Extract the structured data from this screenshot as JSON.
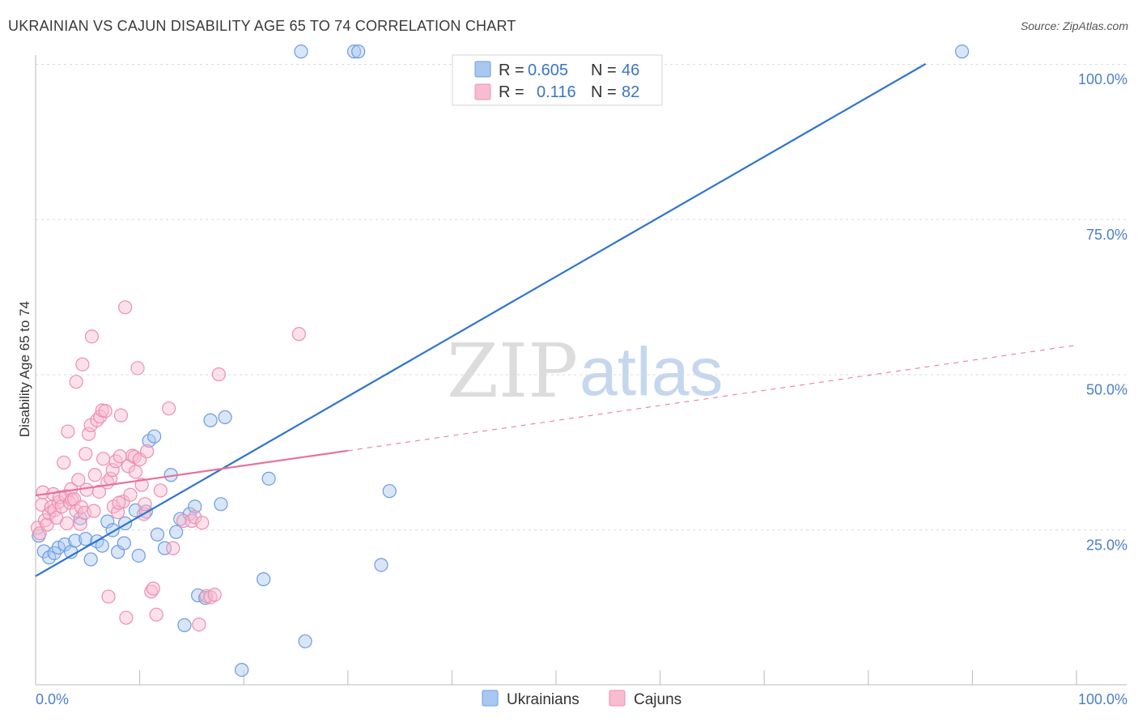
{
  "header": {
    "title": "UKRAINIAN VS CAJUN DISABILITY AGE 65 TO 74 CORRELATION CHART",
    "source": "Source: ZipAtlas.com"
  },
  "watermark": {
    "zip": "ZIP",
    "atlas": "atlas"
  },
  "colors": {
    "blue_fill": "#a9c8f0",
    "blue_stroke": "#6c9be0",
    "blue_line": "#2f74d0",
    "pink_fill": "#f8bcd0",
    "pink_stroke": "#ec8fb0",
    "pink_line": "#e8709a",
    "tick_text": "#4a7fc8",
    "grid": "#d9d9d9"
  },
  "chart_data": {
    "type": "scatter",
    "xlabel": "",
    "ylabel": "Disability Age 65 to 74",
    "xlim": [
      0,
      100
    ],
    "ylim": [
      0,
      100
    ],
    "x_tick_labels": {
      "left": "0.0%",
      "right": "100.0%"
    },
    "y_ticks": [
      {
        "value": 25,
        "label": "25.0%"
      },
      {
        "value": 50,
        "label": "50.0%"
      },
      {
        "value": 75,
        "label": "75.0%"
      },
      {
        "value": 100,
        "label": "100.0%"
      }
    ],
    "legend": {
      "placement": "top-center",
      "entries": [
        {
          "series": "Ukrainians",
          "r_label": "R =",
          "r_value": "0.605",
          "n_label": "N =",
          "n_value": "46"
        },
        {
          "series": "Cajuns",
          "r_label": "R =",
          "r_value": "0.116",
          "n_label": "N =",
          "n_value": "82"
        }
      ]
    },
    "series": [
      {
        "name": "Ukrainians",
        "color": "#6c9be0",
        "trend": {
          "x": [
            0,
            85.5
          ],
          "y": [
            17.5,
            100
          ],
          "style": "solid"
        },
        "points": [
          {
            "x": 0.3,
            "y": 24.0
          },
          {
            "x": 0.8,
            "y": 21.5
          },
          {
            "x": 1.3,
            "y": 20.5
          },
          {
            "x": 1.8,
            "y": 21.2
          },
          {
            "x": 2.2,
            "y": 22.1
          },
          {
            "x": 2.8,
            "y": 22.6
          },
          {
            "x": 3.4,
            "y": 21.4
          },
          {
            "x": 3.8,
            "y": 23.2
          },
          {
            "x": 4.3,
            "y": 26.8
          },
          {
            "x": 4.8,
            "y": 23.5
          },
          {
            "x": 5.3,
            "y": 20.2
          },
          {
            "x": 5.9,
            "y": 23.1
          },
          {
            "x": 6.4,
            "y": 22.4
          },
          {
            "x": 6.9,
            "y": 26.3
          },
          {
            "x": 7.4,
            "y": 24.9
          },
          {
            "x": 7.9,
            "y": 21.4
          },
          {
            "x": 8.5,
            "y": 22.8
          },
          {
            "x": 8.6,
            "y": 26.0
          },
          {
            "x": 9.6,
            "y": 28.1
          },
          {
            "x": 9.9,
            "y": 20.8
          },
          {
            "x": 10.6,
            "y": 27.9
          },
          {
            "x": 10.9,
            "y": 39.3
          },
          {
            "x": 11.4,
            "y": 40.0
          },
          {
            "x": 11.7,
            "y": 24.2
          },
          {
            "x": 12.4,
            "y": 22.0
          },
          {
            "x": 13.0,
            "y": 33.8
          },
          {
            "x": 13.5,
            "y": 24.6
          },
          {
            "x": 13.9,
            "y": 26.7
          },
          {
            "x": 14.3,
            "y": 9.6
          },
          {
            "x": 14.8,
            "y": 27.5
          },
          {
            "x": 15.3,
            "y": 28.7
          },
          {
            "x": 15.6,
            "y": 14.4
          },
          {
            "x": 16.3,
            "y": 14.0
          },
          {
            "x": 16.8,
            "y": 42.6
          },
          {
            "x": 17.8,
            "y": 29.1
          },
          {
            "x": 18.2,
            "y": 43.1
          },
          {
            "x": 19.8,
            "y": 2.4
          },
          {
            "x": 21.9,
            "y": 17.0
          },
          {
            "x": 22.4,
            "y": 33.2
          },
          {
            "x": 25.5,
            "y": 102.0
          },
          {
            "x": 25.9,
            "y": 7.0
          },
          {
            "x": 30.6,
            "y": 102.0
          },
          {
            "x": 31.0,
            "y": 102.0
          },
          {
            "x": 33.2,
            "y": 19.3
          },
          {
            "x": 34.0,
            "y": 31.2
          },
          {
            "x": 89.0,
            "y": 102.0
          }
        ]
      },
      {
        "name": "Cajuns",
        "color": "#ec8fb0",
        "trend": {
          "x": [
            0,
            30
          ],
          "y": [
            30.5,
            37.7
          ],
          "style": "solid",
          "extension": {
            "x": [
              30,
              100
            ],
            "y": [
              37.7,
              54.7
            ],
            "style": "dashed"
          }
        },
        "points": [
          {
            "x": 0.2,
            "y": 25.3
          },
          {
            "x": 0.4,
            "y": 24.4
          },
          {
            "x": 0.6,
            "y": 29.0
          },
          {
            "x": 0.7,
            "y": 31.0
          },
          {
            "x": 0.9,
            "y": 26.5
          },
          {
            "x": 1.1,
            "y": 25.8
          },
          {
            "x": 1.3,
            "y": 27.6
          },
          {
            "x": 1.5,
            "y": 28.6
          },
          {
            "x": 1.7,
            "y": 30.7
          },
          {
            "x": 1.8,
            "y": 28.1
          },
          {
            "x": 2.0,
            "y": 26.9
          },
          {
            "x": 2.2,
            "y": 29.4
          },
          {
            "x": 2.3,
            "y": 30.2
          },
          {
            "x": 2.5,
            "y": 28.7
          },
          {
            "x": 2.7,
            "y": 35.8
          },
          {
            "x": 2.9,
            "y": 30.4
          },
          {
            "x": 3.0,
            "y": 26.0
          },
          {
            "x": 3.1,
            "y": 40.8
          },
          {
            "x": 3.3,
            "y": 29.3
          },
          {
            "x": 3.4,
            "y": 31.5
          },
          {
            "x": 3.5,
            "y": 29.8
          },
          {
            "x": 3.7,
            "y": 29.9
          },
          {
            "x": 3.9,
            "y": 28.0
          },
          {
            "x": 3.9,
            "y": 48.8
          },
          {
            "x": 4.1,
            "y": 33.0
          },
          {
            "x": 4.3,
            "y": 25.9
          },
          {
            "x": 4.4,
            "y": 28.6
          },
          {
            "x": 4.5,
            "y": 51.6
          },
          {
            "x": 4.7,
            "y": 27.7
          },
          {
            "x": 4.8,
            "y": 37.2
          },
          {
            "x": 4.9,
            "y": 31.4
          },
          {
            "x": 5.1,
            "y": 40.4
          },
          {
            "x": 5.3,
            "y": 41.8
          },
          {
            "x": 5.4,
            "y": 56.1
          },
          {
            "x": 5.6,
            "y": 28.0
          },
          {
            "x": 5.7,
            "y": 33.8
          },
          {
            "x": 5.9,
            "y": 42.6
          },
          {
            "x": 6.1,
            "y": 31.1
          },
          {
            "x": 6.2,
            "y": 43.2
          },
          {
            "x": 6.4,
            "y": 44.2
          },
          {
            "x": 6.5,
            "y": 36.4
          },
          {
            "x": 6.7,
            "y": 44.1
          },
          {
            "x": 6.9,
            "y": 32.6
          },
          {
            "x": 7.0,
            "y": 14.2
          },
          {
            "x": 7.2,
            "y": 33.2
          },
          {
            "x": 7.4,
            "y": 34.6
          },
          {
            "x": 7.5,
            "y": 28.7
          },
          {
            "x": 7.7,
            "y": 36.0
          },
          {
            "x": 7.9,
            "y": 27.8
          },
          {
            "x": 8.1,
            "y": 36.8
          },
          {
            "x": 8.2,
            "y": 43.4
          },
          {
            "x": 8.4,
            "y": 29.5
          },
          {
            "x": 8.6,
            "y": 60.8
          },
          {
            "x": 8.7,
            "y": 10.8
          },
          {
            "x": 8.9,
            "y": 35.2
          },
          {
            "x": 9.1,
            "y": 30.6
          },
          {
            "x": 9.3,
            "y": 36.9
          },
          {
            "x": 9.5,
            "y": 36.7
          },
          {
            "x": 9.6,
            "y": 34.3
          },
          {
            "x": 9.8,
            "y": 51.0
          },
          {
            "x": 10.0,
            "y": 36.3
          },
          {
            "x": 10.2,
            "y": 32.2
          },
          {
            "x": 10.4,
            "y": 27.5
          },
          {
            "x": 10.5,
            "y": 29.1
          },
          {
            "x": 10.7,
            "y": 37.6
          },
          {
            "x": 11.1,
            "y": 15.0
          },
          {
            "x": 11.3,
            "y": 15.5
          },
          {
            "x": 11.6,
            "y": 11.3
          },
          {
            "x": 12.0,
            "y": 31.3
          },
          {
            "x": 12.8,
            "y": 44.5
          },
          {
            "x": 13.2,
            "y": 22.0
          },
          {
            "x": 14.2,
            "y": 26.4
          },
          {
            "x": 15.0,
            "y": 26.4
          },
          {
            "x": 15.3,
            "y": 27.0
          },
          {
            "x": 15.7,
            "y": 9.7
          },
          {
            "x": 16.0,
            "y": 26.1
          },
          {
            "x": 16.4,
            "y": 14.3
          },
          {
            "x": 16.8,
            "y": 14.1
          },
          {
            "x": 17.2,
            "y": 14.5
          },
          {
            "x": 17.6,
            "y": 50.0
          },
          {
            "x": 25.3,
            "y": 56.5
          },
          {
            "x": 8.0,
            "y": 29.3
          }
        ]
      }
    ]
  },
  "bottom_legend": [
    {
      "label": "Ukrainians"
    },
    {
      "label": "Cajuns"
    }
  ]
}
